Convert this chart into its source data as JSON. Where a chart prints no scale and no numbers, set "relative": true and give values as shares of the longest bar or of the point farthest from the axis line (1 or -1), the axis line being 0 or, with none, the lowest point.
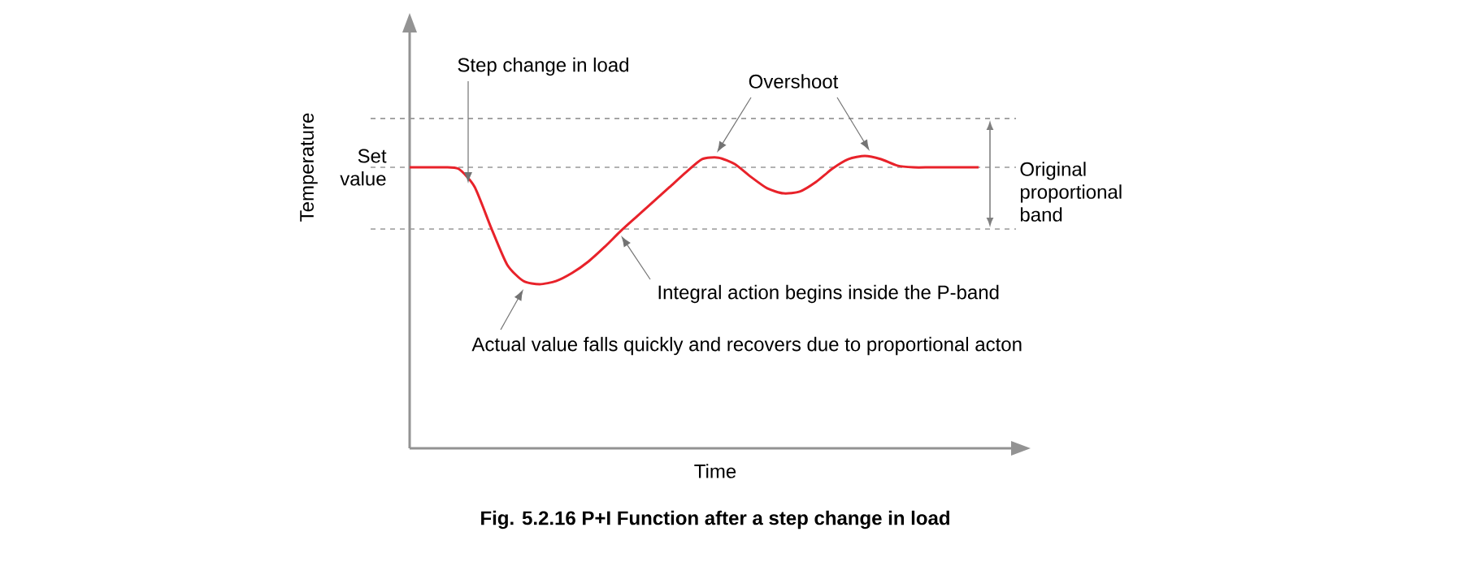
{
  "chart_data": {
    "type": "line",
    "relative": true,
    "title": "Fig. 5.2.16 P+I Function after a step change in load",
    "xlabel": "Time",
    "ylabel": "Temperature",
    "categories": [
      null,
      null,
      null,
      null,
      null,
      null,
      null,
      null,
      null,
      null,
      null,
      null,
      null,
      null,
      null,
      null,
      null,
      null,
      null,
      null,
      null,
      null,
      null,
      null,
      null,
      null,
      null,
      null,
      null,
      null,
      null,
      null,
      null,
      null,
      null,
      null
    ],
    "series": [
      {
        "color": "#e8222a",
        "values": [
          0.961,
          0.961,
          0.961,
          0.956,
          0.894,
          0.756,
          0.628,
          0.572,
          0.561,
          0.572,
          0.6,
          0.639,
          0.689,
          0.744,
          0.794,
          0.844,
          0.894,
          0.944,
          0.989,
          0.994,
          0.972,
          0.928,
          0.889,
          0.872,
          0.878,
          0.911,
          0.956,
          0.989,
          1,
          0.989,
          0.967,
          0.961,
          0.961,
          0.961,
          0.961,
          0.961
        ]
      }
    ],
    "ref_lines": [
      {
        "axis": "y",
        "value": 1.128,
        "line_style": "dashed"
      },
      {
        "axis": "y",
        "value": 0.961,
        "label": "Set value",
        "line_style": "dashed"
      },
      {
        "axis": "y",
        "value": 0.75,
        "line_style": "dashed"
      }
    ],
    "annotations": [
      "Step change in load",
      "Overshoot",
      "Integral action begins inside the P-band",
      "Actual value falls quickly and recovers due to proportional acton",
      "Original proportional band"
    ],
    "marker": "none",
    "line_style": "solid"
  }
}
